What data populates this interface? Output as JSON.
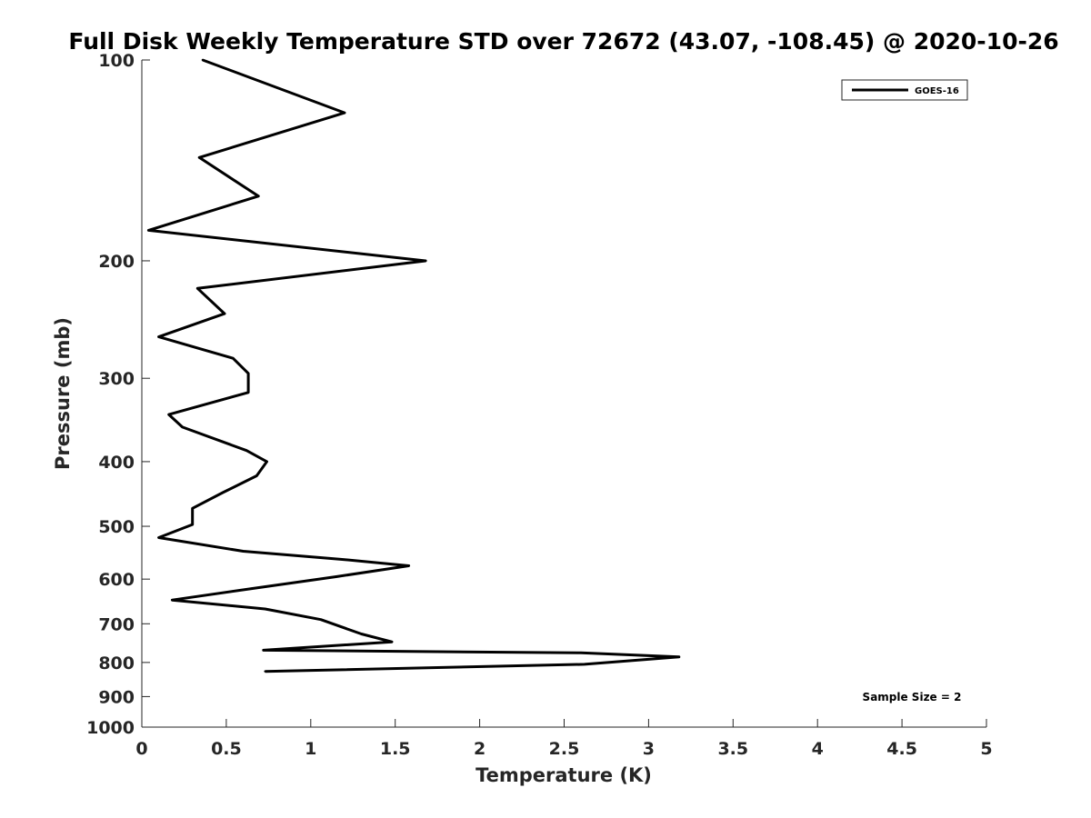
{
  "chart_data": {
    "type": "line",
    "title": "Full Disk Weekly Temperature STD over 72672 (43.07, -108.45) @ 2020-10-26",
    "xlabel": "Temperature (K)",
    "ylabel": "Pressure (mb)",
    "xlim": [
      0,
      5
    ],
    "ylim": [
      1000,
      100
    ],
    "yscale": "log",
    "grid": false,
    "x_ticks": [
      0,
      0.5,
      1,
      1.5,
      2,
      2.5,
      3,
      3.5,
      4,
      4.5,
      5
    ],
    "x_tick_labels": [
      "0",
      "0.5",
      "1",
      "1.5",
      "2",
      "2.5",
      "3",
      "3.5",
      "4",
      "4.5",
      "5"
    ],
    "y_ticks": [
      100,
      200,
      300,
      400,
      500,
      600,
      700,
      800,
      900,
      1000
    ],
    "y_tick_labels": [
      "100",
      "200",
      "300",
      "400",
      "500",
      "600",
      "700",
      "800",
      "900",
      "1000"
    ],
    "legend": {
      "placement": "top-right",
      "entries": [
        "GOES-16"
      ]
    },
    "annotation": "Sample Size = 2",
    "series": [
      {
        "name": "GOES-16",
        "color": "#000000",
        "points": [
          {
            "t": 0.36,
            "p": 100
          },
          {
            "t": 1.2,
            "p": 120
          },
          {
            "t": 0.34,
            "p": 140
          },
          {
            "t": 0.69,
            "p": 160
          },
          {
            "t": 0.04,
            "p": 180
          },
          {
            "t": 1.68,
            "p": 200
          },
          {
            "t": 0.33,
            "p": 220
          },
          {
            "t": 0.49,
            "p": 240
          },
          {
            "t": 0.1,
            "p": 260
          },
          {
            "t": 0.54,
            "p": 280
          },
          {
            "t": 0.63,
            "p": 295
          },
          {
            "t": 0.63,
            "p": 315
          },
          {
            "t": 0.16,
            "p": 340
          },
          {
            "t": 0.24,
            "p": 355
          },
          {
            "t": 0.62,
            "p": 385
          },
          {
            "t": 0.74,
            "p": 400
          },
          {
            "t": 0.68,
            "p": 420
          },
          {
            "t": 0.48,
            "p": 445
          },
          {
            "t": 0.3,
            "p": 470
          },
          {
            "t": 0.3,
            "p": 497
          },
          {
            "t": 0.1,
            "p": 520
          },
          {
            "t": 0.6,
            "p": 545
          },
          {
            "t": 1.17,
            "p": 560
          },
          {
            "t": 1.58,
            "p": 573
          },
          {
            "t": 1.15,
            "p": 595
          },
          {
            "t": 0.65,
            "p": 620
          },
          {
            "t": 0.18,
            "p": 645
          },
          {
            "t": 0.73,
            "p": 665
          },
          {
            "t": 1.06,
            "p": 690
          },
          {
            "t": 1.3,
            "p": 725
          },
          {
            "t": 1.48,
            "p": 745
          },
          {
            "t": 0.72,
            "p": 767
          },
          {
            "t": 2.6,
            "p": 774
          },
          {
            "t": 3.18,
            "p": 785
          },
          {
            "t": 2.62,
            "p": 805
          },
          {
            "t": 0.73,
            "p": 825
          }
        ]
      }
    ]
  }
}
